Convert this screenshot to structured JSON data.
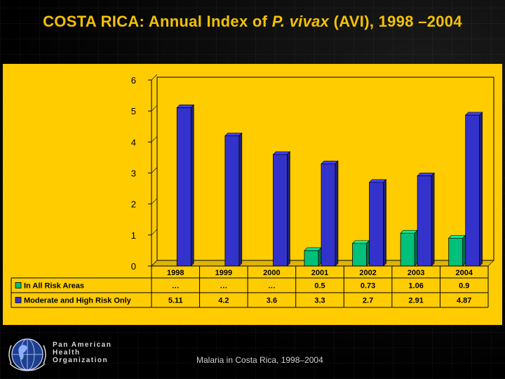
{
  "title": {
    "prefix": "COSTA RICA: Annual Index of ",
    "italic": "P. vivax",
    "suffix": " (AVI), 1998 –2004"
  },
  "footer": {
    "org_line1": "Pan American",
    "org_line2": "Health",
    "org_line3": "Organization",
    "caption": "Malaria in Costa Rica, 1998–2004"
  },
  "chart_data": {
    "type": "bar",
    "title": "COSTA RICA: Annual Index of P. vivax (AVI), 1998 –2004",
    "categories": [
      "1998",
      "1999",
      "2000",
      "2001",
      "2002",
      "2003",
      "2004"
    ],
    "yticks": [
      "0",
      "1",
      "2",
      "3",
      "4",
      "5",
      "6"
    ],
    "ylim": [
      0,
      6
    ],
    "grid": false,
    "series": [
      {
        "name": "In All Risk Areas",
        "color": "#00c07a",
        "values": [
          null,
          null,
          null,
          0.5,
          0.73,
          1.06,
          0.9
        ],
        "labels": [
          "…",
          "…",
          "…",
          "0.5",
          "0.73",
          "1.06",
          "0.9"
        ]
      },
      {
        "name": "Moderate and High Risk Only",
        "color": "#3333cc",
        "values": [
          5.11,
          4.2,
          3.6,
          3.3,
          2.7,
          2.91,
          4.87
        ],
        "labels": [
          "5.11",
          "4.2",
          "3.6",
          "3.3",
          "2.7",
          "2.91",
          "4.87"
        ]
      }
    ]
  }
}
